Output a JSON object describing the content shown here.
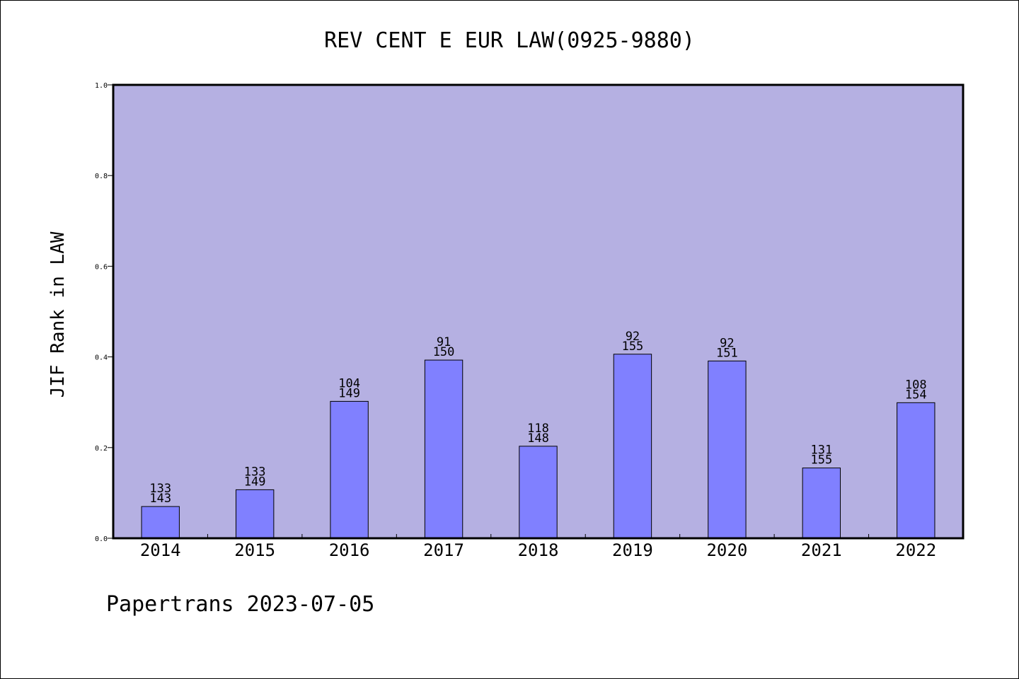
{
  "chart_data": {
    "type": "bar",
    "title": "REV CENT E EUR LAW(0925-9880)",
    "xlabel": "",
    "ylabel": "JIF Rank in LAW",
    "ylim": [
      0,
      1.0
    ],
    "yticks": [
      "0.0",
      "0.2",
      "0.4",
      "0.6",
      "0.8",
      "1.0"
    ],
    "categories": [
      "2014",
      "2015",
      "2016",
      "2017",
      "2018",
      "2019",
      "2020",
      "2021",
      "2022"
    ],
    "values": [
      0.07,
      0.107,
      0.302,
      0.393,
      0.203,
      0.406,
      0.391,
      0.155,
      0.299
    ],
    "annotations": [
      {
        "rank": "133",
        "total": "143"
      },
      {
        "rank": "133",
        "total": "149"
      },
      {
        "rank": "104",
        "total": "149"
      },
      {
        "rank": "91",
        "total": "150"
      },
      {
        "rank": "118",
        "total": "148"
      },
      {
        "rank": "92",
        "total": "155"
      },
      {
        "rank": "92",
        "total": "151"
      },
      {
        "rank": "131",
        "total": "155"
      },
      {
        "rank": "108",
        "total": "154"
      }
    ],
    "grid": false,
    "colors": {
      "plot_background": "#b5b0e2",
      "bar_fill": "#8080ff",
      "bar_stroke": "#000000"
    }
  },
  "footer": "Papertrans 2023-07-05"
}
